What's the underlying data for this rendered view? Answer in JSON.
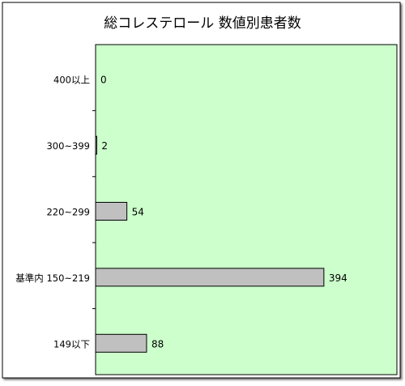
{
  "chart_data": {
    "type": "bar",
    "orientation": "horizontal",
    "title": "総コレステロール 数値別患者数",
    "categories": [
      "400以上",
      "300~399",
      "220~299",
      "基準内 150~219",
      "149以下"
    ],
    "values": [
      0,
      2,
      54,
      394,
      88
    ],
    "xlim": [
      0,
      520
    ],
    "grid": false,
    "legend": "none",
    "colors": {
      "plot_bg": "#ccffcc",
      "bar_fill": "#c0c0c0",
      "bar_stroke": "#000000"
    }
  }
}
